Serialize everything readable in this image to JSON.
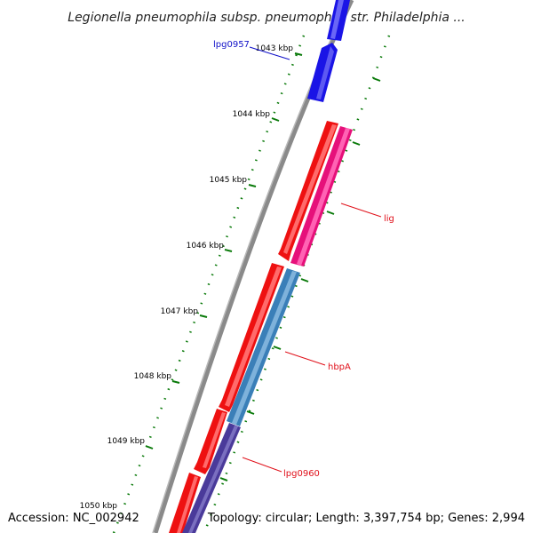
{
  "title": "Legionella pneumophila subsp. pneumophila str. Philadelphia ...",
  "footer": {
    "accession": "Accession: NC_002942",
    "summary": "Topology: circular; Length: 3,397,754 bp; Genes: 2,994"
  },
  "ticks": [
    "1043 kbp",
    "1044 kbp",
    "1045 kbp",
    "1046 kbp",
    "1047 kbp",
    "1048 kbp",
    "1049 kbp",
    "1050 kbp"
  ],
  "genes": [
    {
      "name": "lpg0957",
      "color": "#1a14e6"
    },
    {
      "name": "lig",
      "color": "#e6107a"
    },
    {
      "name": "hbpA",
      "color": "#3a7fb8"
    },
    {
      "name": "lpg0960",
      "color": "#4a3a9a"
    }
  ],
  "colors": {
    "backbone": "#888888",
    "forward_gene": "#ee1111",
    "tick": "#0a7a0a"
  }
}
